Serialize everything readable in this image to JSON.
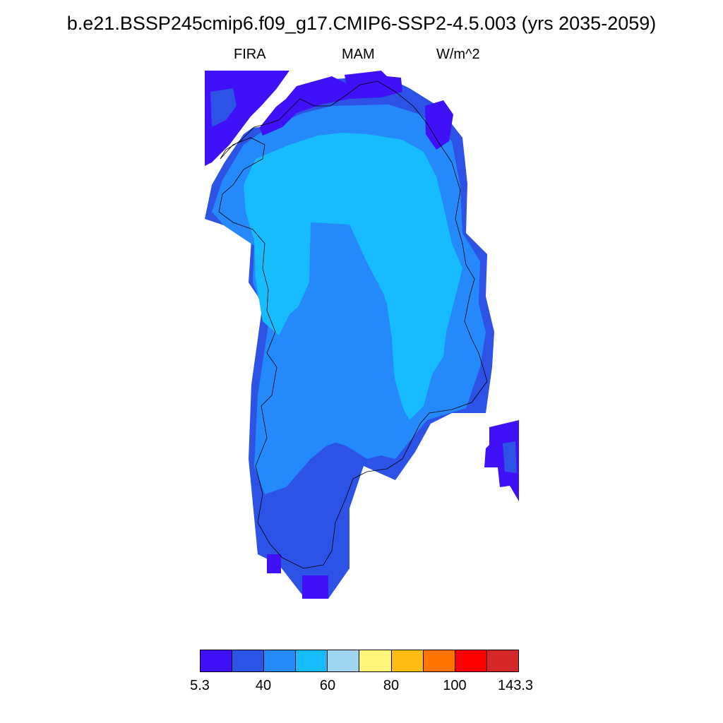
{
  "title": "b.e21.BSSP245cmip6.f09_g17.CMIP6-SSP2-4.5.003 (yrs 2035-2059)",
  "subtitle": {
    "left": "FIRA",
    "center": "MAM",
    "right": "W/m^2"
  },
  "colors": {
    "c1": "#3f10f8",
    "c2": "#2d52e6",
    "c3": "#2489fb",
    "c4": "#16bcff",
    "c5": "#9fd4ef",
    "c6": "#fff57a",
    "c7": "#ffbd13",
    "c8": "#ff7300",
    "c9": "#ff0000",
    "c10": "#d62828"
  },
  "colorbar": {
    "colors": [
      "#3f10f8",
      "#2d52e6",
      "#2489fb",
      "#16bcff",
      "#9fd4ef",
      "#fff57a",
      "#ffbd13",
      "#ff7300",
      "#ff0000",
      "#d62828"
    ],
    "labels": [
      "5.3",
      "40",
      "60",
      "80",
      "100",
      "143.3"
    ]
  }
}
